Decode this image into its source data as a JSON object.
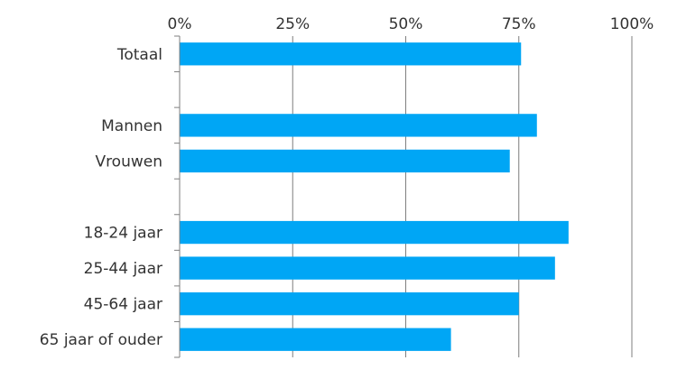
{
  "chart_data": {
    "type": "bar",
    "orientation": "horizontal",
    "title": "",
    "xlabel": "",
    "ylabel": "",
    "xlim": [
      0,
      100
    ],
    "x_ticks": [
      "0%",
      "25%",
      "50%",
      "75%",
      "100%"
    ],
    "x_tick_values": [
      0,
      25,
      50,
      75,
      100
    ],
    "x_axis_position": "top",
    "grid": true,
    "legend": "none",
    "bar_color": "#00A6F5",
    "categories": [
      "Totaal",
      "",
      "Mannen",
      "Vrouwen",
      "",
      "18-24 jaar",
      "25-44 jaar",
      "45-64 jaar",
      "65 jaar of ouder"
    ],
    "values": [
      75.5,
      null,
      79,
      73,
      null,
      86,
      83,
      75,
      60
    ]
  }
}
